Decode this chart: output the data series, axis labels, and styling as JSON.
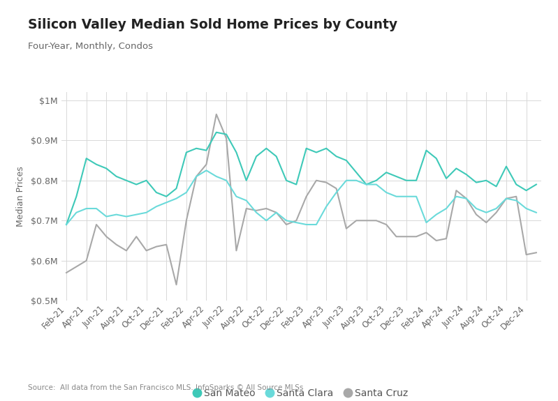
{
  "title": "Silicon Valley Median Sold Home Prices by County",
  "subtitle": "Four-Year, Monthly, Condos",
  "ylabel": "Median Prices",
  "source": "Source:  All data from the San Francisco MLS. InfoSparks © All Source MLSs",
  "ylim": [
    500000,
    1020000
  ],
  "yticks": [
    500000,
    600000,
    700000,
    800000,
    900000,
    1000000
  ],
  "ytick_labels": [
    "$0.5M",
    "$0.6M",
    "$0.7M",
    "$0.8M",
    "$0.9M",
    "$1M"
  ],
  "colors": {
    "san_mateo": "#3ec9b8",
    "santa_clara": "#6adada",
    "santa_cruz": "#a8a8a8",
    "background": "#ffffff",
    "grid": "#d8d8d8"
  },
  "san_mateo": [
    690000,
    760000,
    855000,
    840000,
    830000,
    810000,
    800000,
    790000,
    800000,
    770000,
    760000,
    780000,
    870000,
    880000,
    875000,
    920000,
    915000,
    870000,
    800000,
    860000,
    880000,
    860000,
    800000,
    790000,
    880000,
    870000,
    880000,
    860000,
    850000,
    820000,
    790000,
    800000,
    820000,
    810000,
    800000,
    800000,
    875000,
    855000,
    805000,
    830000,
    815000,
    795000,
    800000,
    785000,
    835000,
    790000,
    775000,
    790000
  ],
  "santa_clara": [
    690000,
    720000,
    730000,
    730000,
    710000,
    715000,
    710000,
    715000,
    720000,
    735000,
    745000,
    755000,
    770000,
    810000,
    825000,
    810000,
    800000,
    760000,
    750000,
    720000,
    700000,
    720000,
    700000,
    695000,
    690000,
    690000,
    735000,
    770000,
    800000,
    800000,
    790000,
    790000,
    770000,
    760000,
    760000,
    760000,
    695000,
    715000,
    730000,
    760000,
    755000,
    730000,
    720000,
    730000,
    755000,
    750000,
    730000,
    720000
  ],
  "santa_cruz": [
    570000,
    585000,
    600000,
    690000,
    660000,
    640000,
    625000,
    660000,
    625000,
    635000,
    640000,
    540000,
    700000,
    810000,
    840000,
    965000,
    905000,
    625000,
    730000,
    725000,
    730000,
    720000,
    690000,
    700000,
    760000,
    800000,
    795000,
    780000,
    680000,
    700000,
    700000,
    700000,
    690000,
    660000,
    660000,
    660000,
    670000,
    650000,
    655000,
    775000,
    755000,
    715000,
    695000,
    720000,
    755000,
    760000,
    615000,
    620000
  ],
  "x_tick_labels": [
    "Feb-21",
    "Apr-21",
    "Jun-21",
    "Aug-21",
    "Oct-21",
    "Dec-21",
    "Feb-22",
    "Apr-22",
    "Jun-22",
    "Aug-22",
    "Oct-22",
    "Dec-22",
    "Feb-23",
    "Apr-23",
    "Jun-23",
    "Aug-23",
    "Oct-23",
    "Dec-23",
    "Feb-24",
    "Apr-24",
    "Jun-24",
    "Aug-24",
    "Oct-24",
    "Dec-24"
  ],
  "x_tick_positions": [
    0,
    2,
    4,
    6,
    8,
    10,
    12,
    14,
    16,
    18,
    20,
    22,
    24,
    26,
    28,
    30,
    32,
    34,
    36,
    38,
    40,
    42,
    44,
    46
  ]
}
